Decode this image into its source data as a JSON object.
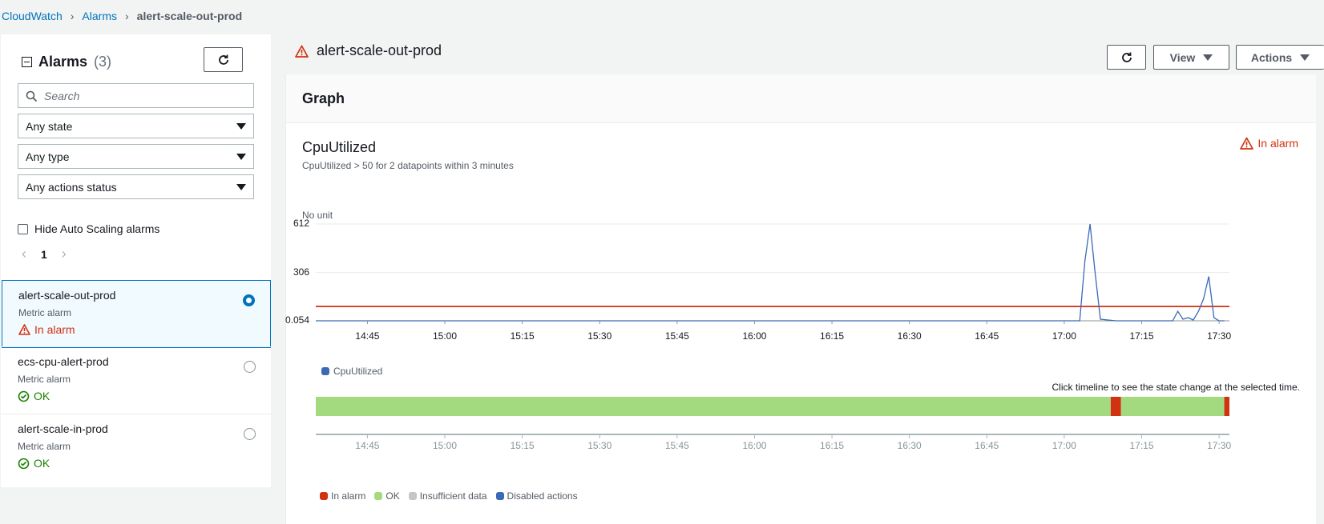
{
  "breadcrumb": {
    "root": "CloudWatch",
    "section": "Alarms",
    "current": "alert-scale-out-prod"
  },
  "sidebar": {
    "title": "Alarms",
    "count": "(3)",
    "search_placeholder": "Search",
    "filters": {
      "state": "Any state",
      "type": "Any type",
      "actions": "Any actions status"
    },
    "hide_autoscaling_label": "Hide Auto Scaling alarms",
    "page": "1",
    "alarms": [
      {
        "name": "alert-scale-out-prod",
        "type": "Metric alarm",
        "state": "In alarm",
        "selected": true
      },
      {
        "name": "ecs-cpu-alert-prod",
        "type": "Metric alarm",
        "state": "OK",
        "selected": false
      },
      {
        "name": "alert-scale-in-prod",
        "type": "Metric alarm",
        "state": "OK",
        "selected": false
      }
    ]
  },
  "main": {
    "title": "alert-scale-out-prod",
    "view_label": "View",
    "actions_label": "Actions",
    "panel_title": "Graph",
    "metric_name": "CpuUtilized",
    "condition": "CpuUtilized > 50 for 2 datapoints within 3 minutes",
    "state_tag": "In alarm",
    "unit": "No unit",
    "legend_series": "CpuUtilized",
    "timeline_hint": "Click timeline to see the state change at the selected time.",
    "state_legend": {
      "alarm": "In alarm",
      "ok": "OK",
      "insufficient": "Insufficient data",
      "disabled": "Disabled actions"
    }
  },
  "colors": {
    "link": "#0073bb",
    "alarm": "#d13212",
    "ok": "#1d8102",
    "ok_bar": "#a3d97f",
    "series": "#3a6ab6",
    "insufficient": "#c6c6c6",
    "disabled": "#3a6ab6"
  },
  "chart_data": {
    "type": "line",
    "ylabel": "No unit",
    "yticks": [
      "612",
      "306",
      "0.054"
    ],
    "ylim": [
      0.054,
      612
    ],
    "xticks": [
      "14:45",
      "15:00",
      "15:15",
      "15:30",
      "15:45",
      "16:00",
      "16:15",
      "16:30",
      "16:45",
      "17:00",
      "17:15",
      "17:30"
    ],
    "threshold": 50,
    "series": [
      {
        "name": "CpuUtilized",
        "x": [
          "14:35",
          "17:03",
          "17:04",
          "17:05",
          "17:06",
          "17:07",
          "17:10",
          "17:15",
          "17:21",
          "17:22",
          "17:23",
          "17:24",
          "17:25",
          "17:26",
          "17:27",
          "17:28",
          "17:29",
          "17:30",
          "17:31"
        ],
        "values": [
          0.054,
          0.054,
          380,
          612,
          300,
          10,
          0.054,
          0.054,
          0.054,
          60,
          10,
          20,
          5,
          60,
          140,
          280,
          20,
          0.054,
          0.054
        ]
      }
    ],
    "timeline": [
      {
        "state": "OK",
        "from": "14:35",
        "to": "17:09"
      },
      {
        "state": "In alarm",
        "from": "17:09",
        "to": "17:11"
      },
      {
        "state": "OK",
        "from": "17:11",
        "to": "17:31"
      },
      {
        "state": "In alarm",
        "from": "17:31",
        "to": "17:32"
      }
    ]
  }
}
